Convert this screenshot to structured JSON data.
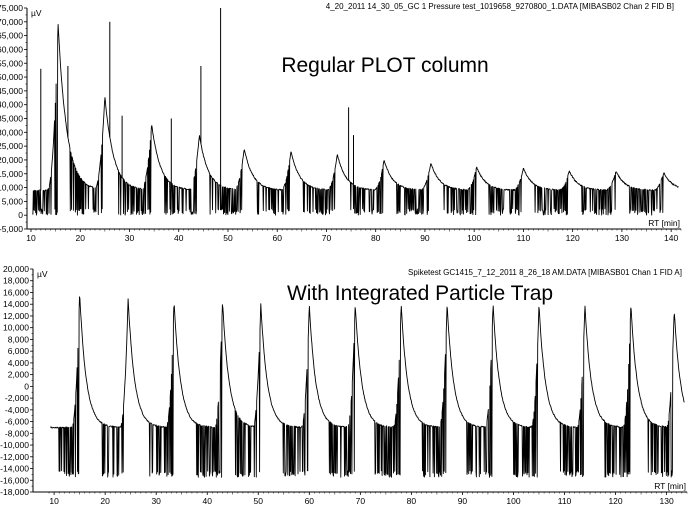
{
  "chart_data": [
    {
      "type": "line",
      "title": "Regular PLOT column",
      "header": "4_20_2011 14_30_05_GC 1 Pressure test_1019658_9270800_1.DATA [MIBASB02  Chan 2  FID B]",
      "ylabel": "µV",
      "xlabel": "RT [min]",
      "xlim": [
        10,
        142
      ],
      "ylim": [
        -5000,
        75000
      ],
      "x_ticks": [
        10,
        20,
        30,
        40,
        50,
        60,
        70,
        80,
        90,
        100,
        110,
        120,
        130,
        140
      ],
      "x_tick_labels": [
        "10",
        "20",
        "30",
        "40",
        "50",
        "60",
        "70",
        "80",
        "90",
        "100",
        "110",
        "120",
        "130",
        "140"
      ],
      "y_ticks": [
        -5000,
        0,
        5000,
        10000,
        15000,
        20000,
        25000,
        30000,
        35000,
        40000,
        45000,
        50000,
        55000,
        60000,
        65000,
        70000,
        75000
      ],
      "y_tick_labels": [
        "-5,000",
        "0",
        "5,000",
        "10,000",
        "15,000",
        "20,000",
        "25,000",
        "30,000",
        "35,000",
        "40,000",
        "45,000",
        "50,000",
        "55,000",
        "60,000",
        "65,000",
        "70,000",
        "75,000"
      ],
      "baseline": 9000,
      "spike_min": 0,
      "peak_width": 2.2,
      "peaks": [
        {
          "x": 15.5,
          "y": 69000
        },
        {
          "x": 25.0,
          "y": 43000
        },
        {
          "x": 34.5,
          "y": 33000
        },
        {
          "x": 44.2,
          "y": 29000
        },
        {
          "x": 53.3,
          "y": 24000
        },
        {
          "x": 62.8,
          "y": 23000
        },
        {
          "x": 72.2,
          "y": 22000
        },
        {
          "x": 81.7,
          "y": 20000
        },
        {
          "x": 91.2,
          "y": 19000
        },
        {
          "x": 100.5,
          "y": 17500
        },
        {
          "x": 110.0,
          "y": 17000
        },
        {
          "x": 119.3,
          "y": 16000
        },
        {
          "x": 128.8,
          "y": 16000
        },
        {
          "x": 138.5,
          "y": 15500
        }
      ],
      "tall_spikes": [
        {
          "x": 12.0,
          "y": 53000
        },
        {
          "x": 17.5,
          "y": 54000
        },
        {
          "x": 26.0,
          "y": 70000
        },
        {
          "x": 28.5,
          "y": 36000
        },
        {
          "x": 38.5,
          "y": 35000
        },
        {
          "x": 44.5,
          "y": 54000
        },
        {
          "x": 48.5,
          "y": 75000
        },
        {
          "x": 74.5,
          "y": 39000
        },
        {
          "x": 75.5,
          "y": 29000
        }
      ]
    },
    {
      "type": "line",
      "title": "With Integrated Particle Trap",
      "header": "Spiketest GC1415_7_12_2011 8_26_18 AM.DATA [MIBASB01  Chan 1  FID A]",
      "ylabel": "µV",
      "xlabel": "RT [min]",
      "xlim": [
        9,
        134
      ],
      "ylim": [
        -18000,
        20000
      ],
      "x_ticks": [
        10,
        20,
        30,
        40,
        50,
        60,
        70,
        80,
        90,
        100,
        110,
        120,
        130
      ],
      "x_tick_labels": [
        "10",
        "20",
        "30",
        "40",
        "50",
        "60",
        "70",
        "80",
        "90",
        "100",
        "110",
        "120",
        "130"
      ],
      "y_ticks": [
        -18000,
        -16000,
        -14000,
        -12000,
        -10000,
        -8000,
        -6000,
        -4000,
        -2000,
        0,
        2000,
        4000,
        6000,
        8000,
        10000,
        12000,
        14000,
        16000,
        18000,
        20000
      ],
      "y_tick_labels": [
        "-18,000",
        "-16,000",
        "-14,000",
        "-12,000",
        "-10,000",
        "-8,000",
        "-6,000",
        "-4,000",
        "-2,000",
        "0",
        "2,000",
        "4,000",
        "6,000",
        "8,000",
        "10,000",
        "12,000",
        "14,000",
        "16,000",
        "18,000",
        "20,000"
      ],
      "baseline": -7000,
      "spike_min": -15500,
      "peak_width": 1.6,
      "peaks": [
        {
          "x": 15.0,
          "y": 16000
        },
        {
          "x": 24.5,
          "y": 15000
        },
        {
          "x": 33.5,
          "y": 14500
        },
        {
          "x": 43.0,
          "y": 14500
        },
        {
          "x": 50.5,
          "y": 14000
        },
        {
          "x": 60.0,
          "y": 14000
        },
        {
          "x": 69.0,
          "y": 14000
        },
        {
          "x": 78.0,
          "y": 14000
        },
        {
          "x": 87.0,
          "y": 14000
        },
        {
          "x": 96.0,
          "y": 14000
        },
        {
          "x": 105.0,
          "y": 14000
        },
        {
          "x": 114.0,
          "y": 14000
        },
        {
          "x": 123.0,
          "y": 14000
        },
        {
          "x": 131.5,
          "y": 13000
        }
      ],
      "tall_spikes": []
    }
  ]
}
